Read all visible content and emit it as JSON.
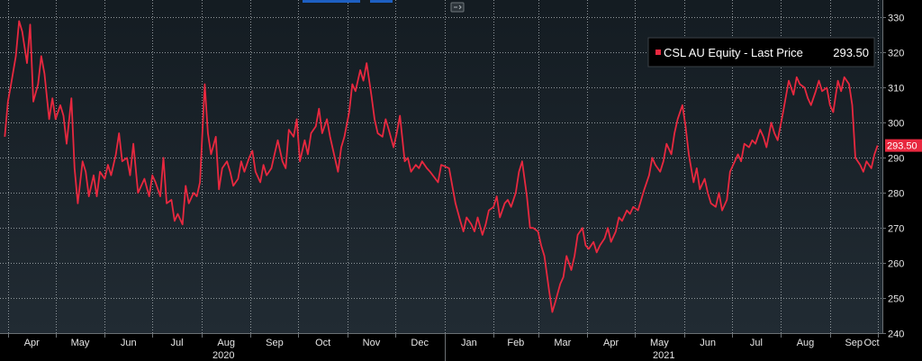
{
  "chart_data": {
    "type": "line",
    "title": "",
    "xlabel": "",
    "ylabel": "",
    "ylim": [
      240,
      335
    ],
    "y_ticks": [
      240,
      250,
      260,
      270,
      280,
      290,
      300,
      310,
      320,
      330
    ],
    "x_month_labels": [
      "Apr",
      "May",
      "Jun",
      "Jul",
      "Aug",
      "Sep",
      "Oct",
      "Nov",
      "Dec",
      "Jan",
      "Feb",
      "Mar",
      "Apr",
      "May",
      "Jun",
      "Jul",
      "Aug",
      "Sep",
      "Oct"
    ],
    "x_year_labels": [
      "2020",
      "2021"
    ],
    "grid": true,
    "legend_position": "top-right",
    "series": [
      {
        "name": "CSL AU Equity - Last Price",
        "last_value_text": "293.50",
        "color": "#e8283f",
        "x": [
          "2020-03-30",
          "2020-04-01",
          "2020-04-03",
          "2020-04-06",
          "2020-04-08",
          "2020-04-10",
          "2020-04-13",
          "2020-04-15",
          "2020-04-17",
          "2020-04-20",
          "2020-04-22",
          "2020-04-24",
          "2020-04-27",
          "2020-04-29",
          "2020-05-01",
          "2020-05-04",
          "2020-05-06",
          "2020-05-08",
          "2020-05-11",
          "2020-05-13",
          "2020-05-15",
          "2020-05-18",
          "2020-05-20",
          "2020-05-22",
          "2020-05-25",
          "2020-05-27",
          "2020-05-29",
          "2020-06-01",
          "2020-06-03",
          "2020-06-05",
          "2020-06-08",
          "2020-06-10",
          "2020-06-12",
          "2020-06-15",
          "2020-06-17",
          "2020-06-19",
          "2020-06-22",
          "2020-06-24",
          "2020-06-26",
          "2020-06-29",
          "2020-07-01",
          "2020-07-03",
          "2020-07-06",
          "2020-07-08",
          "2020-07-10",
          "2020-07-13",
          "2020-07-15",
          "2020-07-17",
          "2020-07-20",
          "2020-07-22",
          "2020-07-24",
          "2020-07-27",
          "2020-07-29",
          "2020-07-31",
          "2020-08-03",
          "2020-08-05",
          "2020-08-07",
          "2020-08-10",
          "2020-08-12",
          "2020-08-14",
          "2020-08-17",
          "2020-08-19",
          "2020-08-21",
          "2020-08-24",
          "2020-08-26",
          "2020-08-28",
          "2020-08-31",
          "2020-09-02",
          "2020-09-04",
          "2020-09-07",
          "2020-09-09",
          "2020-09-11",
          "2020-09-14",
          "2020-09-16",
          "2020-09-18",
          "2020-09-21",
          "2020-09-23",
          "2020-09-25",
          "2020-09-28",
          "2020-09-30",
          "2020-10-02",
          "2020-10-05",
          "2020-10-07",
          "2020-10-09",
          "2020-10-12",
          "2020-10-14",
          "2020-10-16",
          "2020-10-19",
          "2020-10-21",
          "2020-10-23",
          "2020-10-26",
          "2020-10-28",
          "2020-10-30",
          "2020-11-02",
          "2020-11-04",
          "2020-11-06",
          "2020-11-09",
          "2020-11-11",
          "2020-11-13",
          "2020-11-16",
          "2020-11-18",
          "2020-11-20",
          "2020-11-23",
          "2020-11-25",
          "2020-11-27",
          "2020-11-30",
          "2020-12-02",
          "2020-12-04",
          "2020-12-07",
          "2020-12-09",
          "2020-12-11",
          "2020-12-14",
          "2020-12-16",
          "2020-12-18",
          "2020-12-21",
          "2020-12-23",
          "2020-12-28",
          "2020-12-30",
          "2021-01-04",
          "2021-01-06",
          "2021-01-08",
          "2021-01-11",
          "2021-01-13",
          "2021-01-15",
          "2021-01-18",
          "2021-01-20",
          "2021-01-22",
          "2021-01-25",
          "2021-01-27",
          "2021-01-29",
          "2021-02-01",
          "2021-02-03",
          "2021-02-05",
          "2021-02-08",
          "2021-02-10",
          "2021-02-12",
          "2021-02-15",
          "2021-02-17",
          "2021-02-19",
          "2021-02-22",
          "2021-02-24",
          "2021-02-26",
          "2021-03-01",
          "2021-03-03",
          "2021-03-05",
          "2021-03-08",
          "2021-03-10",
          "2021-03-12",
          "2021-03-15",
          "2021-03-17",
          "2021-03-19",
          "2021-03-22",
          "2021-03-24",
          "2021-03-26",
          "2021-03-29",
          "2021-03-31",
          "2021-04-02",
          "2021-04-05",
          "2021-04-07",
          "2021-04-09",
          "2021-04-12",
          "2021-04-14",
          "2021-04-16",
          "2021-04-19",
          "2021-04-21",
          "2021-04-23",
          "2021-04-26",
          "2021-04-28",
          "2021-04-30",
          "2021-05-03",
          "2021-05-05",
          "2021-05-07",
          "2021-05-10",
          "2021-05-12",
          "2021-05-14",
          "2021-05-17",
          "2021-05-19",
          "2021-05-21",
          "2021-05-24",
          "2021-05-26",
          "2021-05-28",
          "2021-05-31",
          "2021-06-02",
          "2021-06-04",
          "2021-06-07",
          "2021-06-09",
          "2021-06-11",
          "2021-06-14",
          "2021-06-16",
          "2021-06-18",
          "2021-06-21",
          "2021-06-23",
          "2021-06-25",
          "2021-06-28",
          "2021-06-30",
          "2021-07-02",
          "2021-07-05",
          "2021-07-07",
          "2021-07-09",
          "2021-07-12",
          "2021-07-14",
          "2021-07-16",
          "2021-07-19",
          "2021-07-21",
          "2021-07-23",
          "2021-07-26",
          "2021-07-28",
          "2021-07-30",
          "2021-08-02",
          "2021-08-04",
          "2021-08-06",
          "2021-08-09",
          "2021-08-11",
          "2021-08-13",
          "2021-08-16",
          "2021-08-18",
          "2021-08-20",
          "2021-08-23",
          "2021-08-25",
          "2021-08-27",
          "2021-08-30",
          "2021-09-01",
          "2021-09-03",
          "2021-09-06",
          "2021-09-08",
          "2021-09-10",
          "2021-09-13",
          "2021-09-15",
          "2021-09-17",
          "2021-09-20",
          "2021-09-22",
          "2021-09-24",
          "2021-09-27",
          "2021-09-29",
          "2021-10-01"
        ],
        "values": [
          296,
          306,
          311,
          319,
          329,
          326,
          317,
          328,
          306,
          311,
          319,
          314,
          301,
          307,
          301,
          305,
          302,
          294,
          307,
          287,
          277,
          289,
          286,
          279,
          285,
          279,
          286,
          284,
          288,
          285,
          291,
          297,
          289,
          290,
          285,
          294,
          280,
          282,
          284,
          279,
          285,
          283,
          279,
          290,
          277,
          278,
          272,
          274,
          271,
          282,
          277,
          280,
          279,
          283,
          311,
          297,
          291,
          296,
          281,
          287,
          289,
          286,
          282,
          284,
          289,
          286,
          290,
          292,
          286,
          283,
          288,
          285,
          287,
          291,
          295,
          289,
          287,
          298,
          296,
          301,
          289,
          295,
          291,
          297,
          299,
          304,
          297,
          301,
          296,
          292,
          286,
          293,
          296,
          303,
          311,
          309,
          315,
          312,
          317,
          308,
          301,
          297,
          296,
          301,
          298,
          293,
          297,
          302,
          289,
          290,
          286,
          288,
          287,
          289,
          287,
          286,
          283,
          288,
          287,
          282,
          277,
          272,
          269,
          273,
          271,
          269,
          273,
          268,
          271,
          275,
          276,
          279,
          273,
          277,
          278,
          276,
          280,
          286,
          289,
          279,
          270,
          270,
          269,
          265,
          262,
          252,
          246,
          249,
          254,
          256,
          262,
          258,
          262,
          268,
          270,
          265,
          264,
          266,
          263,
          265,
          267,
          270,
          266,
          269,
          273,
          272,
          275,
          274,
          276,
          275,
          278,
          281,
          285,
          290,
          288,
          286,
          289,
          294,
          291,
          297,
          301,
          305,
          299,
          291,
          283,
          287,
          281,
          284,
          280,
          277,
          276,
          280,
          275,
          278,
          286,
          288,
          291,
          289,
          294,
          293,
          295,
          294,
          298,
          296,
          293,
          300,
          297,
          295,
          302,
          307,
          312,
          308,
          313,
          311,
          310,
          307,
          305,
          309,
          312,
          309,
          310,
          305,
          303,
          312,
          309,
          313,
          311,
          305,
          290,
          288,
          286,
          289,
          287,
          291,
          293.5
        ]
      }
    ]
  },
  "toolbar": {
    "icon": "chart-options-icon"
  },
  "colors": {
    "background": "#000000",
    "plot_gradient_top": "#141c22",
    "plot_gradient_bottom": "#212b33",
    "grid": "#8f969b",
    "line": "#e8283f",
    "highlight_blue": "#1d5fc2"
  }
}
